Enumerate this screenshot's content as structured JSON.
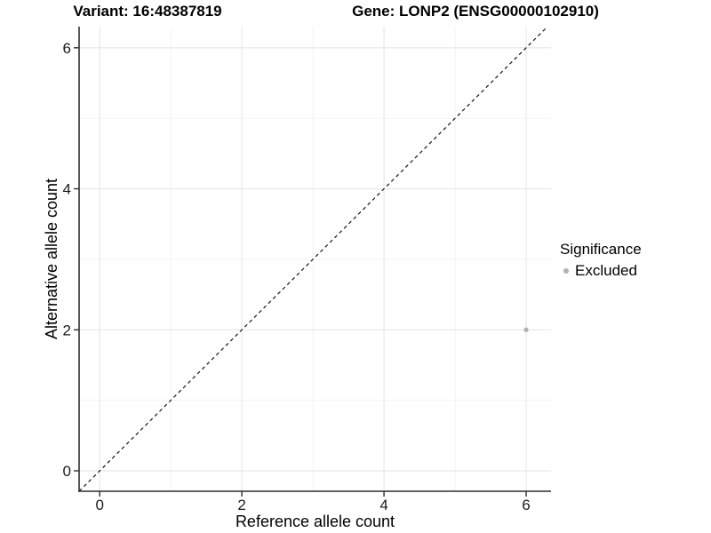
{
  "titles": {
    "left": "Variant: 16:48387819",
    "right": "Gene: LONP2 (ENSG00000102910)"
  },
  "legend": {
    "title": "Significance",
    "entries": [
      {
        "label": "Excluded",
        "color": "#b1b1b1",
        "marker": "circle-icon"
      }
    ]
  },
  "chart_data": {
    "type": "scatter",
    "xlabel": "Reference allele count",
    "ylabel": "Alternative allele count",
    "xlim": [
      -0.29,
      6.35
    ],
    "ylim": [
      -0.29,
      6.3
    ],
    "x_major_ticks": [
      0,
      2,
      4,
      6
    ],
    "y_major_ticks": [
      0,
      2,
      4,
      6
    ],
    "x_minor_ticks": [
      1,
      3,
      5
    ],
    "y_minor_ticks": [
      1,
      3,
      5
    ],
    "grid": true,
    "identity_line": {
      "slope": 1,
      "intercept": 0,
      "style": "dashed",
      "color": "#141414"
    },
    "series": [
      {
        "name": "Excluded",
        "color": "#b1b1b1",
        "points": [
          {
            "x": 6,
            "y": 2
          }
        ]
      }
    ],
    "legend": {
      "title": "Significance",
      "position": "right",
      "entries": [
        "Excluded"
      ]
    },
    "colors": {
      "grid_major": "#e6e6e6",
      "grid_minor": "#f1f1f1",
      "axis_line": "#2e2e2e",
      "tick_text": "#1a1a1a",
      "point": "#b1b1b1"
    }
  }
}
